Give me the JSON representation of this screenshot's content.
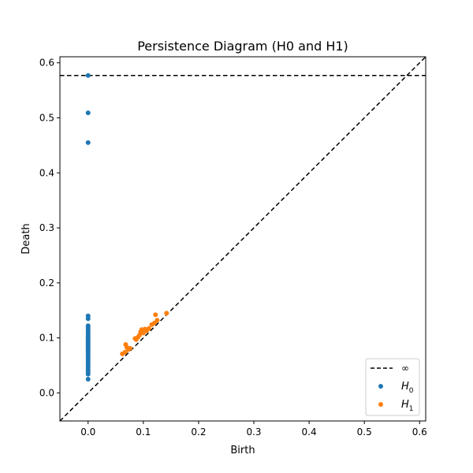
{
  "chart_data": {
    "type": "scatter",
    "title": "Persistence Diagram (H0 and H1)",
    "xlabel": "Birth",
    "ylabel": "Death",
    "xlim": [
      -0.051,
      0.611
    ],
    "ylim": [
      -0.051,
      0.611
    ],
    "xticks": [
      0.0,
      0.1,
      0.2,
      0.3,
      0.4,
      0.5,
      0.6
    ],
    "xtick_labels": [
      "0.0",
      "0.1",
      "0.2",
      "0.3",
      "0.4",
      "0.5",
      "0.6"
    ],
    "yticks": [
      0.0,
      0.1,
      0.2,
      0.3,
      0.4,
      0.5,
      0.6
    ],
    "ytick_labels": [
      "0.0",
      "0.1",
      "0.2",
      "0.3",
      "0.4",
      "0.5",
      "0.6"
    ],
    "infinity_line": 0.577,
    "legend_position": "lower-right",
    "legend": [
      {
        "label": "∞",
        "kind": "dashed-line",
        "color": "#000000"
      },
      {
        "label": "H",
        "sub": "0",
        "kind": "point",
        "color": "#1f77b4"
      },
      {
        "label": "H",
        "sub": "1",
        "kind": "point",
        "color": "#ff7f0e"
      }
    ],
    "series": [
      {
        "name": "H0",
        "color": "#1f77b4",
        "points": [
          [
            0,
            0.577
          ],
          [
            0,
            0.509
          ],
          [
            0,
            0.455
          ],
          [
            0,
            0.14
          ],
          [
            0,
            0.135
          ],
          [
            0,
            0.122
          ],
          [
            0,
            0.118
          ],
          [
            0,
            0.114
          ],
          [
            0,
            0.11
          ],
          [
            0,
            0.106
          ],
          [
            0,
            0.103
          ],
          [
            0,
            0.1
          ],
          [
            0,
            0.097
          ],
          [
            0,
            0.094
          ],
          [
            0,
            0.091
          ],
          [
            0,
            0.088
          ],
          [
            0,
            0.085
          ],
          [
            0,
            0.082
          ],
          [
            0,
            0.079
          ],
          [
            0,
            0.076
          ],
          [
            0,
            0.073
          ],
          [
            0,
            0.07
          ],
          [
            0,
            0.066
          ],
          [
            0,
            0.062
          ],
          [
            0,
            0.058
          ],
          [
            0,
            0.054
          ],
          [
            0,
            0.05
          ],
          [
            0,
            0.046
          ],
          [
            0,
            0.042
          ],
          [
            0,
            0.038
          ],
          [
            0,
            0.034
          ],
          [
            0,
            0.025
          ]
        ]
      },
      {
        "name": "H1",
        "color": "#ff7f0e",
        "points": [
          [
            0.062,
            0.071
          ],
          [
            0.067,
            0.074
          ],
          [
            0.068,
            0.088
          ],
          [
            0.07,
            0.083
          ],
          [
            0.073,
            0.079
          ],
          [
            0.076,
            0.081
          ],
          [
            0.085,
            0.099
          ],
          [
            0.087,
            0.097
          ],
          [
            0.09,
            0.101
          ],
          [
            0.093,
            0.105
          ],
          [
            0.095,
            0.111
          ],
          [
            0.097,
            0.115
          ],
          [
            0.1,
            0.109
          ],
          [
            0.103,
            0.116
          ],
          [
            0.106,
            0.113
          ],
          [
            0.11,
            0.117
          ],
          [
            0.115,
            0.124
          ],
          [
            0.12,
            0.127
          ],
          [
            0.122,
            0.142
          ],
          [
            0.125,
            0.132
          ],
          [
            0.142,
            0.145
          ]
        ]
      }
    ]
  }
}
